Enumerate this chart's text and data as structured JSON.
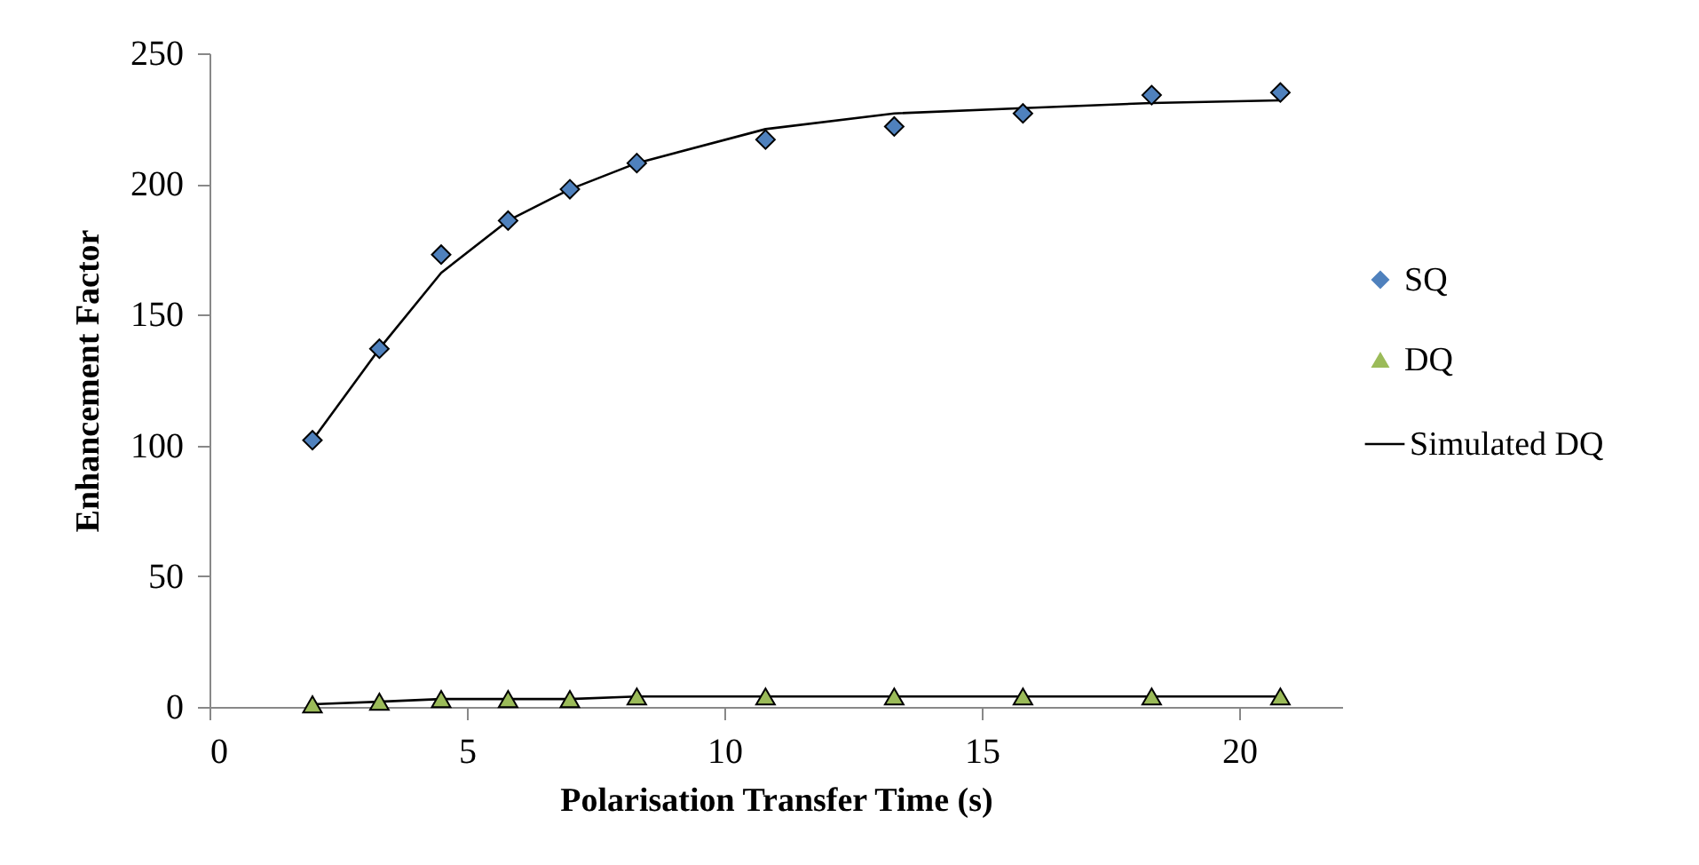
{
  "chart_data": {
    "type": "scatter",
    "xlabel": "Polarisation Transfer Time (s)",
    "ylabel": "Enhancement Factor",
    "x": [
      2.0,
      3.3,
      4.5,
      5.8,
      7.0,
      8.3,
      10.8,
      13.3,
      15.8,
      18.3,
      20.8
    ],
    "series": [
      {
        "name": "SQ",
        "color": "#4f81bd",
        "marker": "diamond",
        "values": [
          102,
          137,
          173,
          186,
          198,
          208,
          217,
          222,
          227,
          234,
          235
        ]
      },
      {
        "name": "DQ",
        "color": "#9bbb59",
        "marker": "triangle",
        "values": [
          1,
          2,
          3,
          3,
          3,
          4,
          4,
          4,
          4,
          4,
          4
        ]
      },
      {
        "name": "Simulated DQ",
        "type": "line",
        "color": "#000000",
        "marker": "none",
        "values": [
          102,
          137,
          166,
          186,
          198,
          208,
          221,
          227,
          229,
          231,
          232
        ]
      },
      {
        "type": "line",
        "color": "#000000",
        "marker": "none",
        "values": [
          1,
          2,
          3,
          3,
          3,
          4,
          4,
          4,
          4,
          4,
          4
        ]
      }
    ],
    "xlim": [
      0,
      22
    ],
    "xticks": [
      0,
      5,
      10,
      15,
      20
    ],
    "ylim": [
      0,
      250
    ],
    "yticks": [
      0,
      50,
      100,
      150,
      200,
      250
    ],
    "grid": false,
    "legend": "right"
  }
}
